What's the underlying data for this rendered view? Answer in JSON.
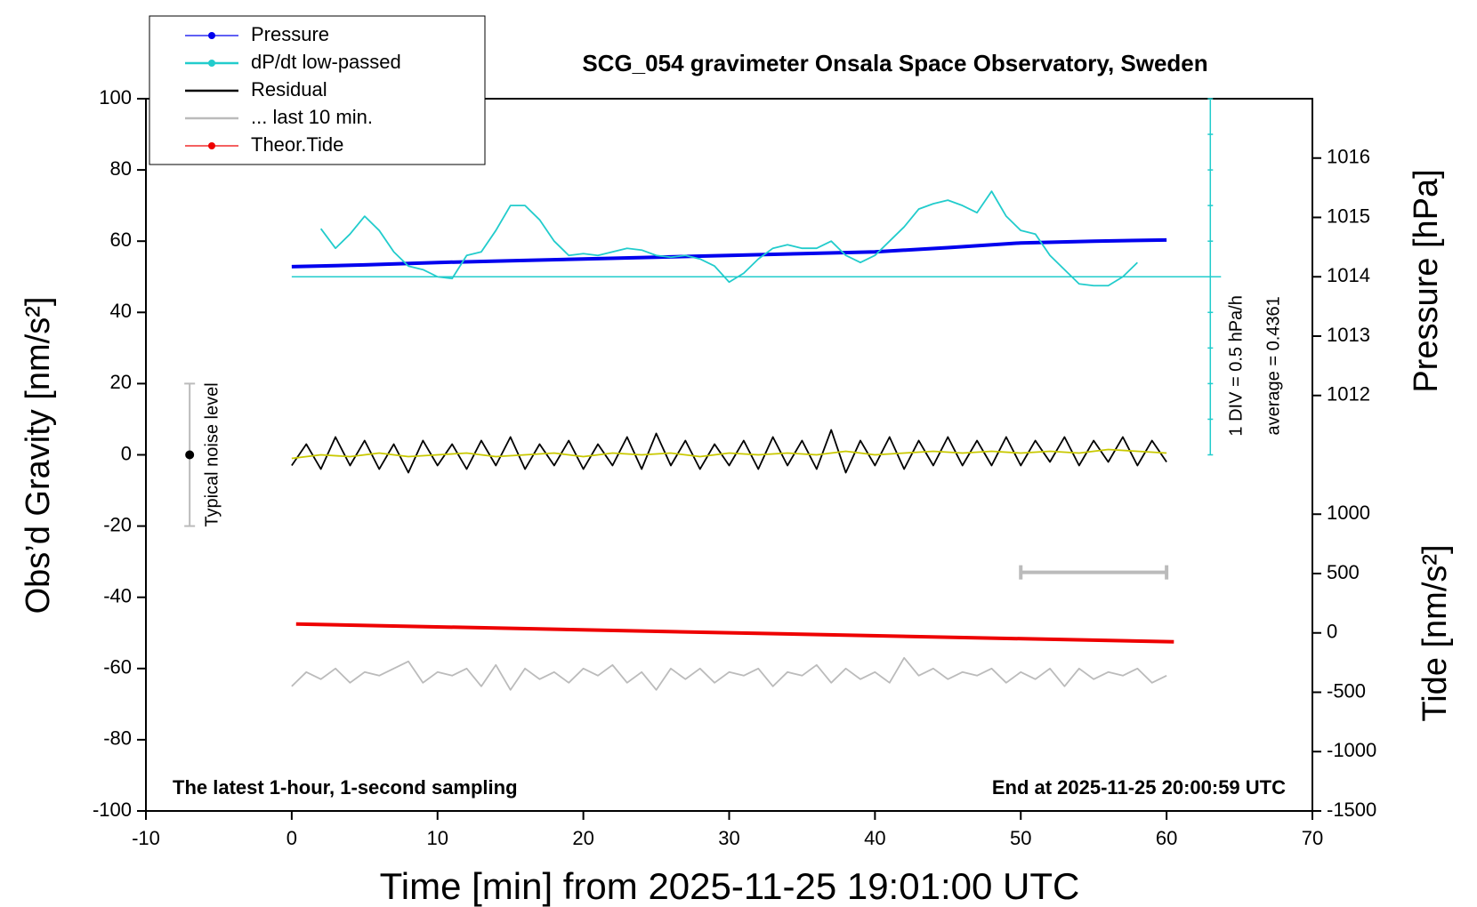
{
  "chart_data": {
    "type": "line",
    "title": "SCG_054 gravimeter Onsala Space Observatory, Sweden",
    "xlabel": "Time [min] from 2025-11-25 19:01:00 UTC",
    "ylabel": "Obs’d Gravity [nm/s²]",
    "y2label": "Pressure [hPa]",
    "y3label": "Tide [nm/s²]",
    "note_left": "The latest 1-hour, 1-second sampling",
    "note_right": "End at 2025-11-25 20:00:59 UTC",
    "xlim": [
      -10,
      70
    ],
    "xticks": [
      -10,
      0,
      10,
      20,
      30,
      40,
      50,
      60,
      70
    ],
    "ylim": [
      -100,
      100
    ],
    "yticks": [
      -100,
      -80,
      -60,
      -40,
      -20,
      0,
      20,
      40,
      60,
      80,
      100
    ],
    "y2lim": [
      1005,
      1017
    ],
    "y2ticks": [
      1012,
      1013,
      1014,
      1015,
      1016
    ],
    "y3lim": [
      -1500,
      4500
    ],
    "y3ticks": [
      -1500,
      -1000,
      -500,
      0,
      500,
      1000
    ],
    "legend": "upper left",
    "series": [
      {
        "name": "Pressure",
        "color": "#0000ee",
        "axis": "y2",
        "x": [
          0,
          5,
          10,
          15,
          20,
          25,
          30,
          35,
          40,
          45,
          50,
          55,
          60
        ],
        "values": [
          1014.17,
          1014.2,
          1014.24,
          1014.27,
          1014.3,
          1014.33,
          1014.36,
          1014.39,
          1014.42,
          1014.49,
          1014.57,
          1014.6,
          1014.62
        ]
      },
      {
        "name": "dP/dt low-passed",
        "color": "#22cccc",
        "x": [
          2,
          3,
          4,
          5,
          6,
          7,
          8,
          9,
          10,
          11,
          12,
          13,
          14,
          15,
          16,
          17,
          18,
          19,
          20,
          21,
          22,
          23,
          24,
          25,
          26,
          27,
          28,
          29,
          30,
          31,
          32,
          33,
          34,
          35,
          36,
          37,
          38,
          39,
          40,
          41,
          42,
          43,
          44,
          45,
          46,
          47,
          48,
          49,
          50,
          51,
          52,
          53,
          54,
          55,
          56,
          57,
          58
        ],
        "values": [
          63.5,
          58,
          62,
          67,
          63,
          57,
          53,
          52,
          50,
          49.5,
          56,
          57,
          63,
          70,
          70,
          66,
          60,
          56,
          56.5,
          56,
          57,
          58,
          57.5,
          56,
          55.5,
          56,
          55,
          53,
          48.5,
          51,
          55,
          58,
          59,
          58,
          58,
          60,
          56,
          54,
          56,
          60,
          64,
          69,
          70.5,
          71.5,
          70,
          68,
          74,
          67,
          63,
          62,
          56,
          52,
          48,
          47.5,
          47.5,
          50,
          54
        ]
      },
      {
        "name": "Residual",
        "color": "#000000",
        "x": [
          0,
          1,
          2,
          3,
          4,
          5,
          6,
          7,
          8,
          9,
          10,
          11,
          12,
          13,
          14,
          15,
          16,
          17,
          18,
          19,
          20,
          21,
          22,
          23,
          24,
          25,
          26,
          27,
          28,
          29,
          30,
          31,
          32,
          33,
          34,
          35,
          36,
          37,
          38,
          39,
          40,
          41,
          42,
          43,
          44,
          45,
          46,
          47,
          48,
          49,
          50,
          51,
          52,
          53,
          54,
          55,
          56,
          57,
          58,
          59,
          60
        ],
        "values": [
          -3,
          3,
          -4,
          5,
          -3,
          4,
          -4,
          3,
          -5,
          4,
          -3,
          3,
          -4,
          4,
          -3,
          5,
          -4,
          3,
          -3,
          4,
          -4,
          3,
          -3,
          5,
          -4,
          6,
          -3,
          4,
          -4,
          3,
          -3,
          4,
          -4,
          5,
          -3,
          4,
          -4,
          7,
          -5,
          4,
          -3,
          5,
          -4,
          4,
          -3,
          5,
          -3,
          4,
          -3,
          5,
          -3,
          4,
          -2,
          5,
          -3,
          4,
          -2,
          5,
          -3,
          4,
          -2
        ]
      },
      {
        "color": "#c8c800",
        "x": [
          0,
          2,
          4,
          6,
          8,
          10,
          12,
          14,
          16,
          18,
          20,
          22,
          24,
          26,
          28,
          30,
          32,
          34,
          36,
          38,
          40,
          42,
          44,
          46,
          48,
          50,
          52,
          54,
          56,
          58,
          60
        ],
        "values": [
          -1,
          0,
          -0.5,
          0.5,
          -0.5,
          0,
          0.5,
          -0.5,
          0,
          0.5,
          -0.5,
          0.5,
          0,
          0.5,
          -0.5,
          0.5,
          0,
          0.5,
          0,
          1,
          0,
          0.5,
          1,
          0.5,
          1,
          0.5,
          1,
          0.5,
          1.5,
          1,
          0.5
        ]
      },
      {
        "name": "... last 10 min.",
        "color": "#bbbbbb",
        "x": [
          0,
          1,
          2,
          3,
          4,
          5,
          6,
          7,
          8,
          9,
          10,
          11,
          12,
          13,
          14,
          15,
          16,
          17,
          18,
          19,
          20,
          21,
          22,
          23,
          24,
          25,
          26,
          27,
          28,
          29,
          30,
          31,
          32,
          33,
          34,
          35,
          36,
          37,
          38,
          39,
          40,
          41,
          42,
          43,
          44,
          45,
          46,
          47,
          48,
          49,
          50,
          51,
          52,
          53,
          54,
          55,
          56,
          57,
          58,
          59,
          60
        ],
        "values": [
          -65,
          -61,
          -63,
          -60,
          -64,
          -61,
          -62,
          -60,
          -58,
          -64,
          -61,
          -62,
          -60,
          -65,
          -59,
          -66,
          -60,
          -63,
          -61,
          -64,
          -60,
          -62,
          -59,
          -64,
          -61,
          -66,
          -60,
          -63,
          -60,
          -64,
          -61,
          -62,
          -60,
          -65,
          -61,
          -62,
          -59,
          -64,
          -60,
          -63,
          -61,
          -64,
          -57,
          -62,
          -60,
          -63,
          -61,
          -62,
          -60,
          -64,
          -61,
          -63,
          -60,
          -65,
          -60,
          -63,
          -61,
          -62,
          -60,
          -64,
          -62
        ]
      },
      {
        "name": "Theor.Tide",
        "color": "#ee0000",
        "axis": "y3",
        "x": [
          0.3,
          60.5
        ],
        "values": [
          75,
          -75
        ]
      }
    ],
    "dpdt_axis": {
      "x": 63,
      "ylim": [
        0,
        100
      ],
      "yticks": [
        0,
        10,
        20,
        30,
        40,
        50,
        60,
        70,
        80,
        90,
        100
      ],
      "baseline": 50,
      "scale_label": "1 DIV = 0.5 hPa/h",
      "average_label": "average = 0.4361"
    },
    "noise_bar": {
      "x": -7,
      "value": 0,
      "error": 20,
      "label": "Typical noise level"
    },
    "scale_bar": {
      "x": [
        50,
        60
      ],
      "y": -33
    }
  }
}
